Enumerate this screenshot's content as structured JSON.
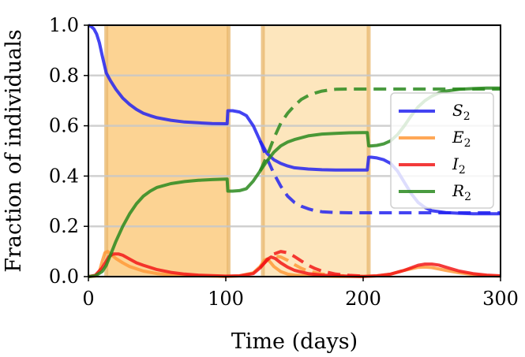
{
  "chart_data": {
    "type": "line",
    "xlabel": "Time (days)",
    "ylabel": "Fraction of individuals",
    "xlim": [
      0,
      300
    ],
    "ylim": [
      0,
      1.0
    ],
    "xticks": [
      "0",
      "100",
      "200",
      "300"
    ],
    "yticks": [
      "0.0",
      "0.2",
      "0.4",
      "0.6",
      "0.8",
      "1.0"
    ],
    "grid": "horizontal",
    "legend_placement": "right",
    "shaded_intervals": [
      {
        "start": 13,
        "end": 102,
        "color": "#fcd393",
        "edge_color": "#e8b970"
      },
      {
        "start": 127,
        "end": 204,
        "color": "#fde6bd",
        "edge_color": "#e8b970"
      }
    ],
    "series": [
      {
        "name": "S",
        "subscript": "2",
        "color": "#2323f0",
        "solid": {
          "x": [
            0,
            2,
            4,
            6,
            8,
            10,
            13,
            16,
            20,
            25,
            30,
            35,
            40,
            45,
            50,
            60,
            70,
            80,
            90,
            100,
            101,
            101.5,
            105,
            110,
            115,
            120,
            125,
            130,
            135,
            140,
            145,
            150,
            160,
            170,
            180,
            190,
            200,
            203,
            204,
            206,
            210,
            215,
            220,
            225,
            230,
            235,
            240,
            245,
            250,
            260,
            270,
            280,
            290,
            300
          ],
          "y": [
            1.0,
            0.995,
            0.985,
            0.965,
            0.93,
            0.88,
            0.81,
            0.78,
            0.745,
            0.71,
            0.685,
            0.665,
            0.65,
            0.64,
            0.632,
            0.622,
            0.615,
            0.612,
            0.609,
            0.608,
            0.608,
            0.66,
            0.66,
            0.655,
            0.64,
            0.6,
            0.54,
            0.49,
            0.465,
            0.45,
            0.44,
            0.433,
            0.428,
            0.425,
            0.424,
            0.424,
            0.424,
            0.424,
            0.475,
            0.475,
            0.472,
            0.465,
            0.45,
            0.42,
            0.375,
            0.33,
            0.295,
            0.275,
            0.262,
            0.255,
            0.252,
            0.25,
            0.25,
            0.25
          ]
        },
        "dashed": {
          "x": [
            125,
            130,
            135,
            140,
            145,
            150,
            155,
            160,
            165,
            170,
            180,
            190,
            200,
            210,
            220,
            240,
            260,
            280,
            300
          ],
          "y": [
            0.54,
            0.47,
            0.41,
            0.36,
            0.32,
            0.295,
            0.28,
            0.27,
            0.262,
            0.258,
            0.255,
            0.254,
            0.254,
            0.254,
            0.254,
            0.254,
            0.254,
            0.254,
            0.254
          ]
        }
      },
      {
        "name": "E",
        "subscript": "2",
        "color": "#ff9a3a",
        "solid": {
          "x": [
            0,
            5,
            8,
            10,
            12,
            14,
            16,
            20,
            25,
            30,
            40,
            50,
            60,
            80,
            100,
            110,
            120,
            125,
            128,
            130,
            132,
            135,
            140,
            145,
            150,
            160,
            180,
            200,
            210,
            220,
            230,
            240,
            245,
            250,
            260,
            270,
            280,
            290,
            300
          ],
          "y": [
            0,
            0.002,
            0.02,
            0.06,
            0.095,
            0.1,
            0.09,
            0.072,
            0.055,
            0.04,
            0.022,
            0.012,
            0.007,
            0.003,
            0.001,
            0.003,
            0.015,
            0.04,
            0.065,
            0.07,
            0.06,
            0.04,
            0.02,
            0.01,
            0.006,
            0.003,
            0.001,
            0.001,
            0.003,
            0.01,
            0.025,
            0.037,
            0.038,
            0.036,
            0.025,
            0.015,
            0.008,
            0.004,
            0.002
          ]
        },
        "dashed": {
          "x": [
            125,
            130,
            135,
            138,
            140,
            145,
            150,
            155,
            160,
            170,
            180,
            190,
            200
          ],
          "y": [
            0.04,
            0.065,
            0.08,
            0.08,
            0.078,
            0.065,
            0.048,
            0.033,
            0.022,
            0.01,
            0.005,
            0.002,
            0.001
          ]
        }
      },
      {
        "name": "I",
        "subscript": "2",
        "color": "#f21818",
        "solid": {
          "x": [
            0,
            5,
            10,
            15,
            18,
            22,
            25,
            30,
            35,
            40,
            50,
            60,
            70,
            80,
            100,
            110,
            120,
            125,
            130,
            133,
            136,
            140,
            145,
            150,
            160,
            170,
            180,
            190,
            200,
            210,
            220,
            230,
            240,
            245,
            250,
            255,
            260,
            270,
            280,
            290,
            300
          ],
          "y": [
            0,
            0.005,
            0.035,
            0.08,
            0.09,
            0.09,
            0.085,
            0.07,
            0.055,
            0.045,
            0.028,
            0.017,
            0.01,
            0.006,
            0.002,
            0.003,
            0.012,
            0.035,
            0.068,
            0.078,
            0.072,
            0.055,
            0.038,
            0.025,
            0.012,
            0.006,
            0.003,
            0.002,
            0.001,
            0.003,
            0.01,
            0.025,
            0.045,
            0.05,
            0.05,
            0.046,
            0.038,
            0.022,
            0.012,
            0.006,
            0.003
          ]
        },
        "dashed": {
          "x": [
            125,
            130,
            135,
            140,
            145,
            150,
            155,
            160,
            165,
            170,
            180,
            190,
            200
          ],
          "y": [
            0.035,
            0.065,
            0.09,
            0.1,
            0.095,
            0.08,
            0.062,
            0.045,
            0.032,
            0.022,
            0.01,
            0.005,
            0.002
          ]
        }
      },
      {
        "name": "R",
        "subscript": "2",
        "color": "#2a8a1f",
        "solid": {
          "x": [
            0,
            5,
            10,
            13,
            16,
            20,
            25,
            30,
            35,
            40,
            45,
            50,
            60,
            70,
            80,
            90,
            100,
            101,
            101.5,
            105,
            110,
            115,
            120,
            125,
            130,
            135,
            140,
            145,
            150,
            160,
            170,
            180,
            190,
            200,
            203,
            204,
            206,
            210,
            215,
            220,
            225,
            230,
            235,
            240,
            245,
            250,
            255,
            260,
            270,
            280,
            290,
            300
          ],
          "y": [
            0,
            0.003,
            0.02,
            0.045,
            0.085,
            0.14,
            0.2,
            0.25,
            0.29,
            0.32,
            0.34,
            0.355,
            0.37,
            0.378,
            0.383,
            0.386,
            0.388,
            0.388,
            0.34,
            0.34,
            0.342,
            0.35,
            0.38,
            0.42,
            0.46,
            0.495,
            0.52,
            0.535,
            0.545,
            0.56,
            0.567,
            0.57,
            0.572,
            0.573,
            0.573,
            0.52,
            0.52,
            0.522,
            0.528,
            0.54,
            0.565,
            0.6,
            0.64,
            0.675,
            0.7,
            0.718,
            0.73,
            0.738,
            0.745,
            0.748,
            0.75,
            0.75
          ]
        },
        "dashed": {
          "x": [
            125,
            130,
            135,
            140,
            145,
            150,
            155,
            160,
            165,
            170,
            175,
            180,
            190,
            200,
            210,
            220,
            240,
            260,
            280,
            300
          ],
          "y": [
            0.42,
            0.48,
            0.55,
            0.61,
            0.65,
            0.68,
            0.705,
            0.72,
            0.73,
            0.738,
            0.742,
            0.745,
            0.746,
            0.746,
            0.746,
            0.746,
            0.746,
            0.746,
            0.746,
            0.746
          ]
        }
      }
    ]
  }
}
